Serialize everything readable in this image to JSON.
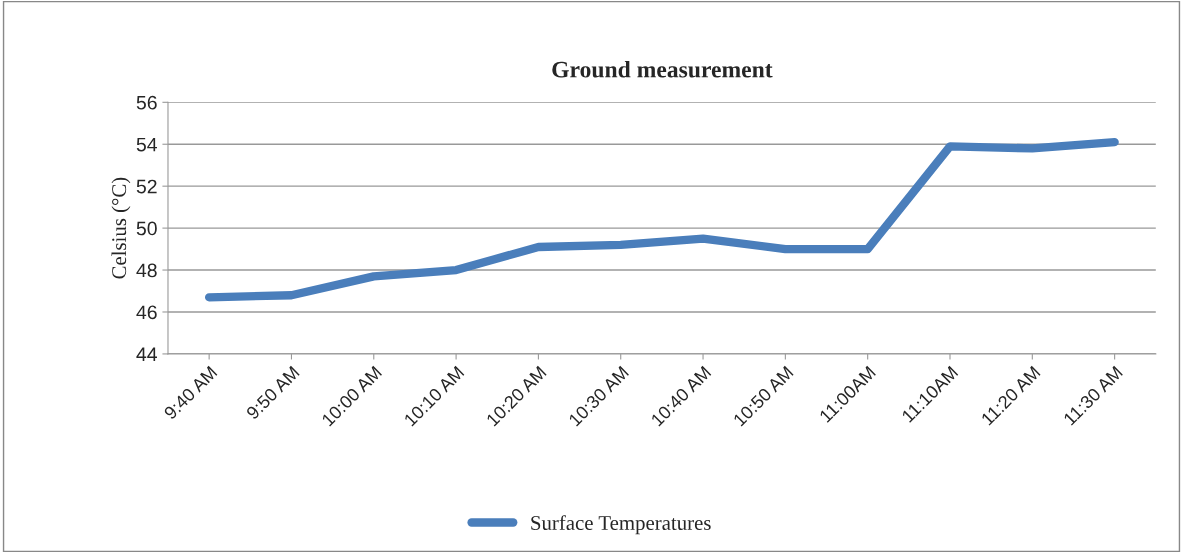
{
  "chart_data": {
    "type": "line",
    "title": "Ground measurement",
    "ylabel": "Celsius (°C)",
    "categories": [
      "9:40 AM",
      "9:50 AM",
      "10:00 AM",
      "10:10 AM",
      "10:20 AM",
      "10:30 AM",
      "10:40 AM",
      "10:50 AM",
      "11:00AM",
      "11:10AM",
      "11:20 AM",
      "11:30 AM"
    ],
    "series": [
      {
        "name": "Surface Temperatures",
        "color": "#4a7ebb",
        "values": [
          46.7,
          46.8,
          47.7,
          48.0,
          49.1,
          49.2,
          49.5,
          49.0,
          49.0,
          53.9,
          53.8,
          54.1
        ]
      }
    ],
    "ylim": [
      44,
      56
    ],
    "yticks": [
      44,
      46,
      48,
      50,
      52,
      54,
      56
    ],
    "grid": "y",
    "legend": "bottom",
    "marker": "none",
    "line_style": "solid"
  }
}
